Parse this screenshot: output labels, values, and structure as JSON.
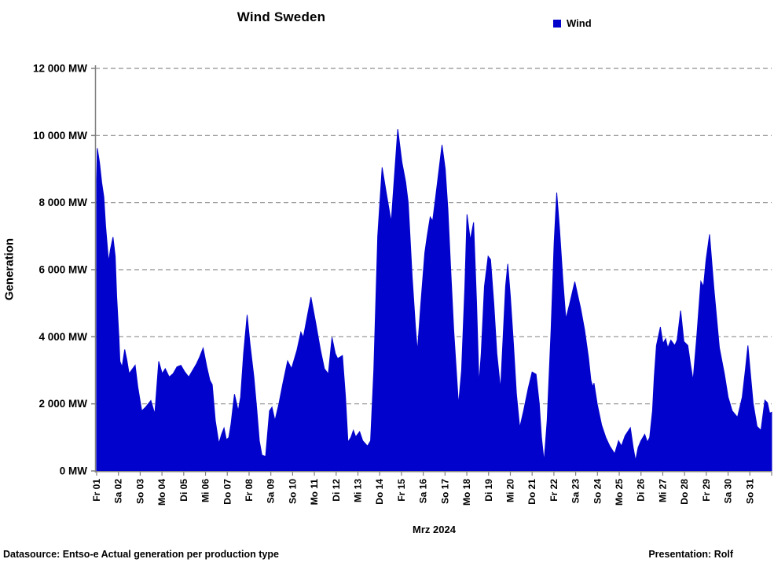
{
  "title": "Wind Sweden",
  "legend": {
    "label": "Wind",
    "swatch_color": "#0202CD"
  },
  "footer": {
    "left": "Datasource: Entso-e  Actual generation per production type",
    "right": "Presentation: Rolf"
  },
  "colors": {
    "series_fill": "#0202CD",
    "gridline": "#8f8f8f",
    "axis": "#7f7f7f",
    "tick": "#7f7f7f"
  },
  "chart_data": {
    "type": "area",
    "title": "Wind Sweden",
    "xlabel": "Mrz 2024",
    "ylabel": "Generation",
    "legend_entries": [
      "Wind"
    ],
    "legend_position": "top-right",
    "grid": "horizontal-dashed",
    "ylim": [
      0,
      12000
    ],
    "x_domain_days": [
      0,
      31
    ],
    "y_ticks": [
      {
        "value": 0,
        "label": "0 MW"
      },
      {
        "value": 2000,
        "label": "2 000 MW"
      },
      {
        "value": 4000,
        "label": "4 000 MW"
      },
      {
        "value": 6000,
        "label": "6 000 MW"
      },
      {
        "value": 8000,
        "label": "8 000 MW"
      },
      {
        "value": 10000,
        "label": "10 000 MW"
      },
      {
        "value": 12000,
        "label": "12 000 MW"
      }
    ],
    "x_categories": [
      "Fr 01",
      "Sa 02",
      "So 03",
      "Mo 04",
      "Di 05",
      "Mi 06",
      "Do 07",
      "Fr 08",
      "Sa 09",
      "So 10",
      "Mo 11",
      "Di 12",
      "Mi 13",
      "Do 14",
      "Fr 15",
      "Sa 16",
      "So 17",
      "Mo 18",
      "Di 19",
      "Mi 20",
      "Do 21",
      "Fr 22",
      "Sa 23",
      "So 24",
      "Mo 25",
      "Di 26",
      "Mi 27",
      "Do 28",
      "Fr 29",
      "Sa 30",
      "So 31"
    ],
    "series": [
      {
        "name": "Wind",
        "unit": "MW",
        "points_day_mw": [
          [
            0,
            8700
          ],
          [
            0.03,
            9620
          ],
          [
            0.13,
            9200
          ],
          [
            0.23,
            8600
          ],
          [
            0.33,
            8170
          ],
          [
            0.41,
            7300
          ],
          [
            0.55,
            6230
          ],
          [
            0.63,
            6600
          ],
          [
            0.75,
            6970
          ],
          [
            0.85,
            6400
          ],
          [
            0.92,
            5200
          ],
          [
            1.02,
            4000
          ],
          [
            1.07,
            3270
          ],
          [
            1.17,
            3100
          ],
          [
            1.29,
            3620
          ],
          [
            1.39,
            3300
          ],
          [
            1.49,
            2900
          ],
          [
            1.6,
            3000
          ],
          [
            1.77,
            3150
          ],
          [
            1.89,
            2500
          ],
          [
            2.07,
            1790
          ],
          [
            2.25,
            1900
          ],
          [
            2.49,
            2100
          ],
          [
            2.67,
            1700
          ],
          [
            2.85,
            3270
          ],
          [
            3.01,
            2900
          ],
          [
            3.15,
            3050
          ],
          [
            3.33,
            2800
          ],
          [
            3.51,
            2900
          ],
          [
            3.69,
            3100
          ],
          [
            3.87,
            3150
          ],
          [
            4.05,
            2950
          ],
          [
            4.23,
            2800
          ],
          [
            4.41,
            3000
          ],
          [
            4.59,
            3200
          ],
          [
            4.73,
            3400
          ],
          [
            4.89,
            3660
          ],
          [
            5.06,
            3100
          ],
          [
            5.2,
            2700
          ],
          [
            5.31,
            2570
          ],
          [
            5.45,
            1500
          ],
          [
            5.61,
            820
          ],
          [
            5.74,
            1100
          ],
          [
            5.85,
            1280
          ],
          [
            5.96,
            930
          ],
          [
            6.07,
            1000
          ],
          [
            6.17,
            1400
          ],
          [
            6.33,
            2290
          ],
          [
            6.43,
            2000
          ],
          [
            6.5,
            1790
          ],
          [
            6.61,
            2200
          ],
          [
            6.75,
            3500
          ],
          [
            6.91,
            4650
          ],
          [
            7.04,
            3800
          ],
          [
            7.22,
            2800
          ],
          [
            7.36,
            1800
          ],
          [
            7.47,
            900
          ],
          [
            7.59,
            470
          ],
          [
            7.76,
            430
          ],
          [
            7.94,
            1790
          ],
          [
            8.05,
            1900
          ],
          [
            8.19,
            1500
          ],
          [
            8.37,
            2000
          ],
          [
            8.55,
            2600
          ],
          [
            8.77,
            3280
          ],
          [
            8.95,
            3050
          ],
          [
            9.2,
            3600
          ],
          [
            9.38,
            4140
          ],
          [
            9.49,
            3980
          ],
          [
            9.67,
            4600
          ],
          [
            9.84,
            5180
          ],
          [
            10.05,
            4450
          ],
          [
            10.28,
            3600
          ],
          [
            10.46,
            3050
          ],
          [
            10.64,
            2890
          ],
          [
            10.81,
            3980
          ],
          [
            10.96,
            3500
          ],
          [
            11.07,
            3350
          ],
          [
            11.29,
            3440
          ],
          [
            11.43,
            2200
          ],
          [
            11.54,
            860
          ],
          [
            11.68,
            1000
          ],
          [
            11.79,
            1210
          ],
          [
            11.9,
            1015
          ],
          [
            12.08,
            1170
          ],
          [
            12.22,
            900
          ],
          [
            12.44,
            740
          ],
          [
            12.58,
            900
          ],
          [
            12.73,
            3000
          ],
          [
            12.91,
            7000
          ],
          [
            13.11,
            9050
          ],
          [
            13.3,
            8300
          ],
          [
            13.53,
            7420
          ],
          [
            13.7,
            9000
          ],
          [
            13.83,
            10190
          ],
          [
            14.02,
            9200
          ],
          [
            14.19,
            8620
          ],
          [
            14.31,
            8000
          ],
          [
            14.49,
            5800
          ],
          [
            14.64,
            4300
          ],
          [
            14.73,
            3560
          ],
          [
            14.89,
            5000
          ],
          [
            15.07,
            6500
          ],
          [
            15.18,
            7000
          ],
          [
            15.32,
            7570
          ],
          [
            15.43,
            7450
          ],
          [
            15.65,
            8600
          ],
          [
            15.86,
            9720
          ],
          [
            16.01,
            9000
          ],
          [
            16.13,
            7800
          ],
          [
            16.26,
            6000
          ],
          [
            16.4,
            4200
          ],
          [
            16.62,
            1970
          ],
          [
            16.76,
            3000
          ],
          [
            16.91,
            5500
          ],
          [
            17.01,
            7650
          ],
          [
            17.16,
            6880
          ],
          [
            17.31,
            7410
          ],
          [
            17.45,
            5000
          ],
          [
            17.56,
            2580
          ],
          [
            17.66,
            3500
          ],
          [
            17.81,
            5500
          ],
          [
            17.98,
            6400
          ],
          [
            18.09,
            6300
          ],
          [
            18.24,
            5000
          ],
          [
            18.38,
            3500
          ],
          [
            18.55,
            2440
          ],
          [
            18.67,
            4000
          ],
          [
            18.78,
            5500
          ],
          [
            18.88,
            6170
          ],
          [
            19,
            5200
          ],
          [
            19.14,
            3800
          ],
          [
            19.28,
            2300
          ],
          [
            19.43,
            1290
          ],
          [
            19.61,
            1800
          ],
          [
            19.82,
            2460
          ],
          [
            20,
            2950
          ],
          [
            20.18,
            2880
          ],
          [
            20.33,
            2000
          ],
          [
            20.43,
            1000
          ],
          [
            20.55,
            280
          ],
          [
            20.69,
            1500
          ],
          [
            20.87,
            4200
          ],
          [
            21.01,
            6800
          ],
          [
            21.13,
            8300
          ],
          [
            21.26,
            7200
          ],
          [
            21.41,
            5700
          ],
          [
            21.55,
            4530
          ],
          [
            21.73,
            5000
          ],
          [
            21.96,
            5640
          ],
          [
            22.09,
            5250
          ],
          [
            22.23,
            4840
          ],
          [
            22.41,
            4200
          ],
          [
            22.59,
            3360
          ],
          [
            22.7,
            2700
          ],
          [
            22.79,
            2500
          ],
          [
            22.84,
            2620
          ],
          [
            22.99,
            2000
          ],
          [
            23.19,
            1370
          ],
          [
            23.38,
            1000
          ],
          [
            23.56,
            750
          ],
          [
            23.79,
            510
          ],
          [
            23.97,
            900
          ],
          [
            24.1,
            740
          ],
          [
            24.27,
            1050
          ],
          [
            24.51,
            1290
          ],
          [
            24.64,
            700
          ],
          [
            24.75,
            310
          ],
          [
            24.87,
            700
          ],
          [
            25,
            900
          ],
          [
            25.17,
            1090
          ],
          [
            25.29,
            860
          ],
          [
            25.4,
            1000
          ],
          [
            25.53,
            1800
          ],
          [
            25.61,
            2800
          ],
          [
            25.71,
            3740
          ],
          [
            25.89,
            4290
          ],
          [
            26.01,
            3800
          ],
          [
            26.13,
            3940
          ],
          [
            26.23,
            3670
          ],
          [
            26.37,
            3900
          ],
          [
            26.55,
            3740
          ],
          [
            26.66,
            3900
          ],
          [
            26.82,
            4780
          ],
          [
            26.97,
            3860
          ],
          [
            27.15,
            3740
          ],
          [
            27.27,
            3200
          ],
          [
            27.39,
            2690
          ],
          [
            27.56,
            4000
          ],
          [
            27.75,
            5650
          ],
          [
            27.87,
            5500
          ],
          [
            27.99,
            6300
          ],
          [
            28.15,
            7050
          ],
          [
            28.28,
            6000
          ],
          [
            28.35,
            5420
          ],
          [
            28.6,
            3670
          ],
          [
            28.83,
            2890
          ],
          [
            29,
            2200
          ],
          [
            29.19,
            1790
          ],
          [
            29.43,
            1600
          ],
          [
            29.65,
            2200
          ],
          [
            29.79,
            3000
          ],
          [
            29.91,
            3740
          ],
          [
            30.04,
            2800
          ],
          [
            30.15,
            2030
          ],
          [
            30.33,
            1330
          ],
          [
            30.51,
            1210
          ],
          [
            30.69,
            2110
          ],
          [
            30.81,
            2030
          ],
          [
            30.91,
            1720
          ],
          [
            31,
            1750
          ]
        ]
      }
    ]
  }
}
